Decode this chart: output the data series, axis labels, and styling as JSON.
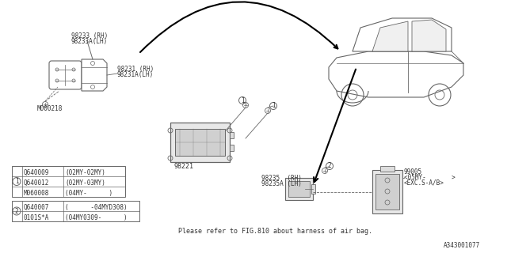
{
  "bg_color": "#ffffff",
  "line_color": "#666666",
  "text_color": "#333333",
  "diagram_id": "A343001077",
  "note": "Please refer to FIG.810 about harness of air bag.",
  "parts": {
    "sensor_bracket_label1": "98233 (RH)",
    "sensor_bracket_label2": "98233A(LH)",
    "sensor_label1": "98231 (RH)",
    "sensor_label2": "98231A(LH)",
    "bolt_label": "M000218",
    "ecm_label": "98221",
    "pressure_sensor_label1": "98235  (RH)",
    "pressure_sensor_label2": "98235A (LH)",
    "bracket2_label": "99005",
    "bracket2_sub1": "<05MY-       >",
    "bracket2_sub2": "<EXC.S-A/B>"
  },
  "table1": {
    "circle_num": "1",
    "rows": [
      [
        "Q640009",
        "(02MY-02MY)"
      ],
      [
        "Q640012",
        "(02MY-03MY)"
      ],
      [
        "M060008",
        "(04MY-      )"
      ]
    ]
  },
  "table2": {
    "circle_num": "2",
    "rows": [
      [
        "Q640007",
        "(      -04MYD308)"
      ],
      [
        "0101S*A",
        "(04MY0309-      )"
      ]
    ]
  }
}
